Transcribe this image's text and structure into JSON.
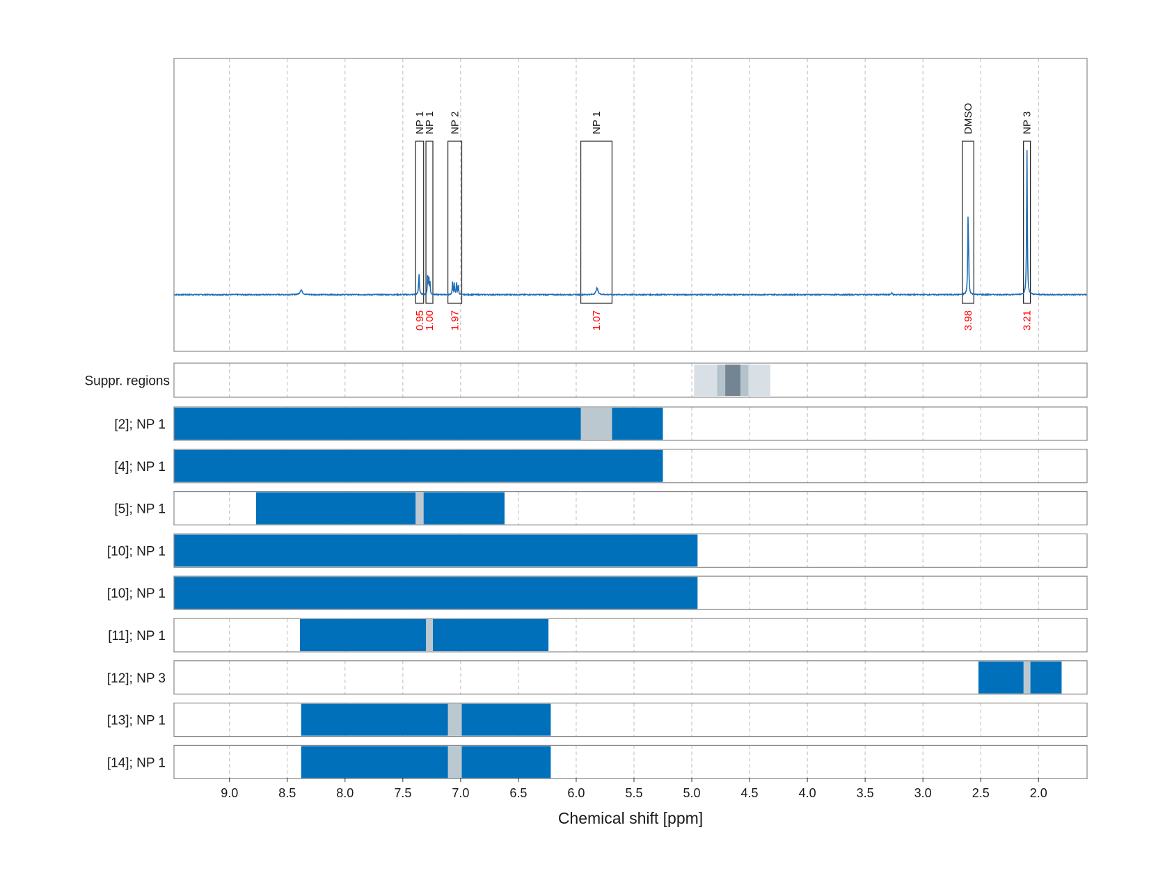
{
  "colors": {
    "spectrum": "#1f6fb5",
    "bar": "#0070bb",
    "gap": "#bcc8d0",
    "frame": "#888888",
    "grid": "#bbbbbb",
    "integral": "#ff0000",
    "suppr_light": "#d8e0e6",
    "suppr_mid": "#b4c2cb",
    "suppr_dark": "#738593"
  },
  "chart_data": {
    "type": "nmr-spectrum-with-region-bars",
    "xlabel": "Chemical shift [ppm]",
    "xlim": [
      9.48,
      1.58
    ],
    "x_reversed": true,
    "x_ticks": [
      "9.0",
      "8.5",
      "8.0",
      "7.5",
      "7.0",
      "6.5",
      "6.0",
      "5.5",
      "5.0",
      "4.5",
      "4.0",
      "3.5",
      "3.0",
      "2.5",
      "2.0"
    ],
    "grid": "dashed-vertical",
    "spectrum": {
      "baseline": 0,
      "peaks": [
        {
          "ppm": 8.38,
          "height": 0.02,
          "width": 0.012
        },
        {
          "ppm": 7.36,
          "height": 0.09,
          "width": 0.004
        },
        {
          "ppm": 7.285,
          "height": 0.09,
          "width": 0.003
        },
        {
          "ppm": 7.275,
          "height": 0.07,
          "width": 0.003
        },
        {
          "ppm": 7.265,
          "height": 0.05,
          "width": 0.003
        },
        {
          "ppm": 7.07,
          "height": 0.055,
          "width": 0.003
        },
        {
          "ppm": 7.055,
          "height": 0.05,
          "width": 0.003
        },
        {
          "ppm": 7.035,
          "height": 0.055,
          "width": 0.003
        },
        {
          "ppm": 7.02,
          "height": 0.045,
          "width": 0.003
        },
        {
          "ppm": 5.82,
          "height": 0.028,
          "width": 0.01
        },
        {
          "ppm": 3.27,
          "height": 0.01,
          "width": 0.004
        },
        {
          "ppm": 2.61,
          "height": 0.3,
          "width": 0.0035
        },
        {
          "ppm": 2.605,
          "height": 0.12,
          "width": 0.003
        },
        {
          "ppm": 2.1,
          "height": 0.62,
          "width": 0.0035
        }
      ],
      "y_top": 1.0,
      "y_bottom": -0.24
    },
    "integration_regions": [
      {
        "label": "NP 1",
        "integral": "0.95",
        "from": 7.39,
        "to": 7.32
      },
      {
        "label": "NP 1",
        "integral": "1.00",
        "from": 7.3,
        "to": 7.24
      },
      {
        "label": "NP 2",
        "integral": "1.97",
        "from": 7.11,
        "to": 6.99
      },
      {
        "label": "NP 1",
        "integral": "1.07",
        "from": 5.96,
        "to": 5.69
      },
      {
        "label": "DMSO",
        "integral": "3.98",
        "from": 2.66,
        "to": 2.56
      },
      {
        "label": "NP 3",
        "integral": "3.21",
        "from": 2.13,
        "to": 2.07
      }
    ],
    "suppressed_regions": {
      "label": "Suppr. regions",
      "bands": [
        {
          "from": 4.98,
          "to": 4.32,
          "level": "light"
        },
        {
          "from": 4.78,
          "to": 4.51,
          "level": "mid"
        },
        {
          "from": 4.71,
          "to": 4.58,
          "level": "dark"
        }
      ]
    },
    "region_rows": [
      {
        "label": "[2]; NP 1",
        "from": 9.48,
        "to": 5.25,
        "gap": [
          5.96,
          5.69
        ]
      },
      {
        "label": "[4]; NP 1",
        "from": 9.48,
        "to": 5.25,
        "gap": null
      },
      {
        "label": "[5]; NP 1",
        "from": 8.77,
        "to": 6.62,
        "gap": [
          7.39,
          7.32
        ]
      },
      {
        "label": "[10]; NP 1",
        "from": 9.48,
        "to": 4.95,
        "gap": null
      },
      {
        "label": "[10]; NP 1",
        "from": 9.48,
        "to": 4.95,
        "gap": null
      },
      {
        "label": "[11]; NP 1",
        "from": 8.39,
        "to": 6.24,
        "gap": [
          7.3,
          7.24
        ]
      },
      {
        "label": "[12]; NP 3",
        "from": 2.52,
        "to": 1.8,
        "gap": [
          2.13,
          2.07
        ]
      },
      {
        "label": "[13]; NP 1",
        "from": 8.38,
        "to": 6.22,
        "gap": [
          7.11,
          6.99
        ]
      },
      {
        "label": "[14]; NP 1",
        "from": 8.38,
        "to": 6.22,
        "gap": [
          7.11,
          6.99
        ]
      }
    ]
  }
}
